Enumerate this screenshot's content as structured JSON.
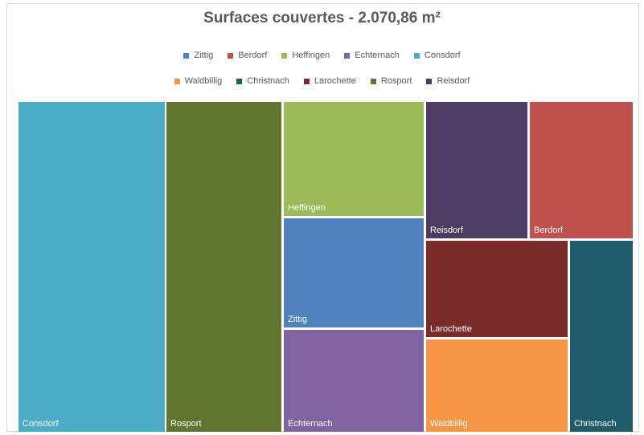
{
  "chart_data": {
    "type": "treemap",
    "title": "Surfaces couvertes - 2.070,86 m²",
    "legend": [
      [
        "Zittig",
        "Berdorf",
        "Heffingen",
        "Echternach",
        "Consdorf"
      ],
      [
        "Waldbillig",
        "Christnach",
        "Larochette",
        "Rosport",
        "Reisdorf"
      ]
    ],
    "colors": {
      "Zittig": "#4f81bd",
      "Berdorf": "#c0504d",
      "Heffingen": "#9bbb59",
      "Echternach": "#8064a2",
      "Consdorf": "#4bacc6",
      "Waldbillig": "#f79646",
      "Christnach": "#1f5b69",
      "Larochette": "#7a2c2a",
      "Rosport": "#5f7530",
      "Reisdorf": "#4d3b62"
    },
    "tiles": [
      {
        "name": "Consdorf"
      },
      {
        "name": "Rosport"
      },
      {
        "name": "Heffingen"
      },
      {
        "name": "Zittig"
      },
      {
        "name": "Echternach"
      },
      {
        "name": "Reisdorf"
      },
      {
        "name": "Berdorf"
      },
      {
        "name": "Larochette"
      },
      {
        "name": "Waldbillig"
      },
      {
        "name": "Christnach"
      }
    ]
  }
}
